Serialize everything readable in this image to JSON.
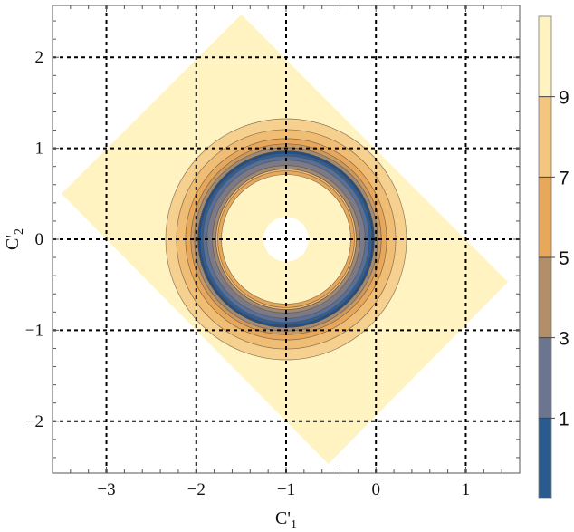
{
  "chart_data": {
    "type": "contour",
    "xlabel": "C'",
    "xlabel_sub": "1",
    "ylabel": "C'",
    "ylabel_sub": "2",
    "xlim": [
      -3.6,
      1.6
    ],
    "ylim": [
      -2.57,
      2.57
    ],
    "x_ticks": [
      -3,
      -2,
      -1,
      0,
      1
    ],
    "y_ticks": [
      -2,
      -1,
      0,
      1,
      2
    ],
    "x_tick_labels": [
      "−3",
      "−2",
      "−1",
      "0",
      "1"
    ],
    "y_tick_labels": [
      "−2",
      "−1",
      "0",
      "1",
      "2"
    ],
    "grid": "dashed black at major ticks",
    "domain_region": {
      "shape": "rotated rectangle",
      "vertices": [
        [
          -1.5,
          2.47
        ],
        [
          1.47,
          -0.47
        ],
        [
          -0.53,
          -2.47
        ],
        [
          -3.5,
          0.5
        ]
      ]
    },
    "rings": {
      "center": [
        -1,
        0
      ],
      "inner_hole_radius": 0.25,
      "bands": [
        {
          "r_inner": 0.98,
          "r_outer": 1.34,
          "level": "8-9"
        },
        {
          "r_inner": 0.98,
          "r_outer": 1.22,
          "level": "7-8"
        },
        {
          "r_inner": 0.98,
          "r_outer": 1.12,
          "level": "6-7"
        },
        {
          "r_inner": 0.98,
          "r_outer": 1.06,
          "level": "5-6"
        },
        {
          "r_inner": 0.98,
          "r_outer": 1.02,
          "level": "4-5"
        },
        {
          "r_inner": 0.78,
          "r_outer": 0.98,
          "level": "4-5"
        },
        {
          "r_inner": 0.84,
          "r_outer": 0.98,
          "level": "5-6"
        },
        {
          "r_inner": 0.92,
          "r_outer": 0.98,
          "level": "2-3"
        },
        {
          "r_inner": 0.82,
          "r_outer": 0.98,
          "level": "3-4"
        },
        {
          "r_inner": 0.88,
          "r_outer": 0.98,
          "level": "2-3"
        },
        {
          "r_inner": 0.925,
          "r_outer": 0.98,
          "level": "1-2"
        },
        {
          "r_inner": 0.955,
          "r_outer": 0.98,
          "level": "0-1"
        },
        {
          "r_inner": 0.72,
          "r_outer": 0.78,
          "level": "6-7"
        },
        {
          "r_inner": 0.76,
          "r_outer": 0.78,
          "level": "7-8"
        }
      ]
    },
    "colorbar": {
      "range": [
        -1,
        11
      ],
      "labels": [
        "1",
        "3",
        "5",
        "7",
        "9"
      ],
      "label_values": [
        1,
        3,
        5,
        7,
        9
      ],
      "bands": [
        {
          "from": -1,
          "to": 1,
          "color": "#2b5a8e"
        },
        {
          "from": 1,
          "to": 3,
          "color": "#6c7590"
        },
        {
          "from": 3,
          "to": 5,
          "color": "#b38f69"
        },
        {
          "from": 5,
          "to": 7,
          "color": "#e8a85c"
        },
        {
          "from": 7,
          "to": 9,
          "color": "#f4c57e"
        },
        {
          "from": 9,
          "to": 11,
          "color": "#fff3c2"
        }
      ]
    },
    "level_colors": {
      "0-1": "#1f4f8c",
      "1-2": "#2f5f94",
      "2-3": "#56709a",
      "3-4": "#7c7a86",
      "4-5": "#a08a75",
      "5-6": "#c99a62",
      "6-7": "#e8a85c",
      "7-8": "#f0bd75",
      "8-9": "#f6d08f",
      "9-10": "#fff3c2"
    }
  }
}
